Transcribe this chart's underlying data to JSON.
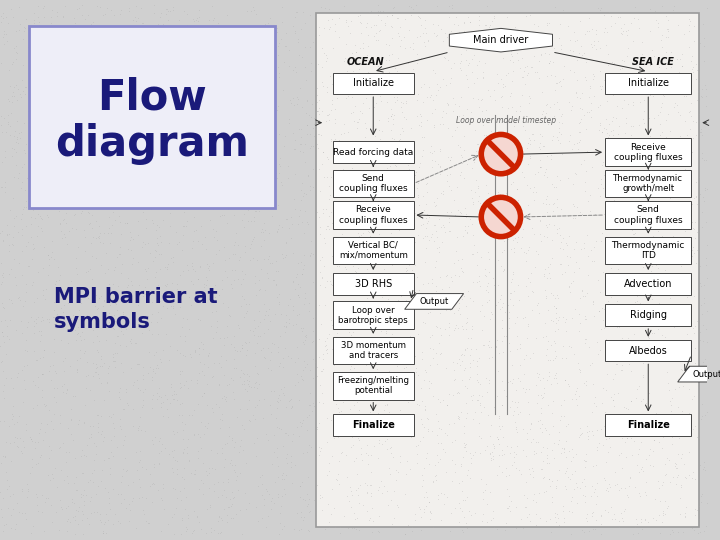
{
  "bg_color": "#d0d0d0",
  "left_panel_border": "#8888cc",
  "left_panel_bg": "#e8e8f0",
  "title": "Flow\ndiagram",
  "title_color": "#1a1a7a",
  "subtitle": "MPI barrier at\nsymbols",
  "subtitle_color": "#1a1a7a",
  "diagram_bg": "#f0eeeb",
  "box_edge": "#555555",
  "barrier_color": "#cc2200",
  "ocean_label": "OCEAN",
  "seaice_label": "SEA ICE",
  "loop_label": "Loop over model timestep"
}
